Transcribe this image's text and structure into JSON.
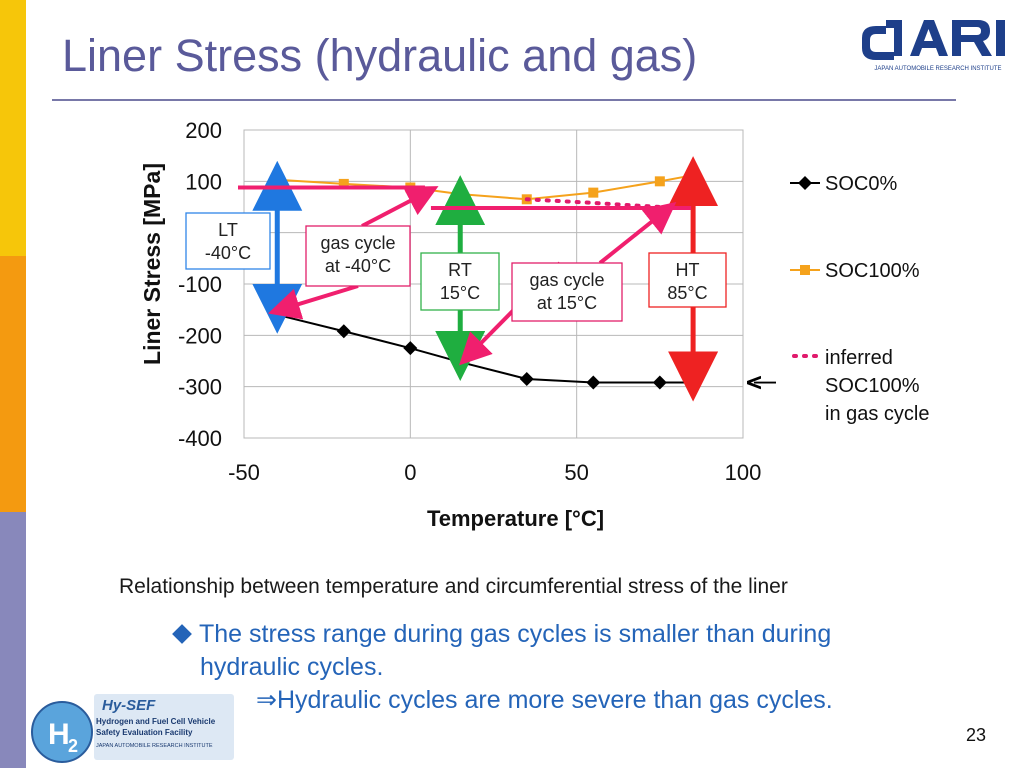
{
  "slide": {
    "title": "Liner Stress (hydraulic and gas)",
    "page_number": "23",
    "caption": "Relationship between temperature and circumferential stress of the liner",
    "bullet_line1": "The stress range during gas cycles is smaller than during",
    "bullet_line2": "hydraulic cycles.",
    "bullet_conclusion": "⇒Hydraulic cycles are more severe than gas cycles.",
    "logo_jari_text": "JAPAN AUTOMOBILE RESEARCH INSTITUTE",
    "logo_hysef_text": {
      "name": "Hy-SEF",
      "line1": "Hydrogen and Fuel Cell Vehicle",
      "line2": "Safety Evaluation Facility",
      "line3": "JAPAN AUTOMOBILE RESEARCH INSTITUTE"
    }
  },
  "colors": {
    "title": "#5a5a9a",
    "bar_yellow": "#f6c60a",
    "bar_orange": "#f49a10",
    "bar_violet": "#8888bb",
    "soc0": "#000000",
    "soc100": "#f5a21c",
    "inferred": "#e01a6c",
    "blue_arrow": "#1f78e0",
    "green_arrow": "#1fae40",
    "red_arrow": "#ee2222",
    "pink_arrow": "#f01f6e",
    "bullet_text": "#2464b8"
  },
  "chart_data": {
    "type": "line",
    "xlabel": "Temperature [°C]",
    "ylabel": "Liner Stress [MPa]",
    "xlim": [
      -50,
      100
    ],
    "ylim": [
      -400,
      200
    ],
    "xticks": [
      -50,
      0,
      50,
      100
    ],
    "yticks": [
      200,
      100,
      -100,
      -200,
      -300,
      -400
    ],
    "ytick_labels": [
      "200",
      "100",
      "-100",
      "-200",
      "-300",
      "-400"
    ],
    "xtick_labels": [
      "-50",
      "0",
      "50",
      "100"
    ],
    "grid": true,
    "legend_placement": "right",
    "series": [
      {
        "name": "SOC0%",
        "marker": "diamond",
        "x": [
          -40,
          -20,
          0,
          15,
          35,
          55,
          75,
          85
        ],
        "y": [
          -160,
          -192,
          -225,
          -252,
          -285,
          -292,
          -292,
          -292
        ]
      },
      {
        "name": "SOC100%",
        "marker": "square",
        "x": [
          -40,
          -20,
          0,
          15,
          35,
          55,
          75,
          85
        ],
        "y": [
          103,
          95,
          88,
          75,
          65,
          78,
          100,
          112
        ]
      },
      {
        "name": "inferred SOC100% in gas cycle",
        "style": "dotted",
        "x": [
          35,
          55,
          75,
          85
        ],
        "y": [
          65,
          58,
          50,
          48
        ]
      }
    ],
    "legend_entries": [
      "SOC0%",
      "SOC100%",
      "inferred",
      "SOC100%",
      "in gas cycle"
    ],
    "annotations": [
      {
        "name": "lt",
        "lines": [
          "LT",
          "-40°C"
        ]
      },
      {
        "name": "gas-cycle-m40",
        "lines": [
          "gas cycle",
          "at -40°C"
        ]
      },
      {
        "name": "rt",
        "lines": [
          "RT",
          "15°C"
        ]
      },
      {
        "name": "gas-cycle-15",
        "lines": [
          "gas cycle",
          "at 15°C"
        ]
      },
      {
        "name": "ht",
        "lines": [
          "HT",
          "85°C"
        ]
      }
    ],
    "stress_ranges": [
      {
        "name": "hydraulic-lt",
        "x": -40,
        "y_low": -160,
        "y_high": 103,
        "color": "blue"
      },
      {
        "name": "hydraulic-rt",
        "x": 15,
        "y_low": -252,
        "y_high": 75,
        "color": "green"
      },
      {
        "name": "hydraulic-ht",
        "x": 85,
        "y_low": -292,
        "y_high": 112,
        "color": "red"
      }
    ],
    "gas_cycle_levels": [
      {
        "name": "gas-level-m40",
        "x_from": -50,
        "x_to": 5,
        "y": 88
      },
      {
        "name": "gas-level-15",
        "x_from": 8,
        "x_to": 85,
        "y": 48
      }
    ]
  }
}
